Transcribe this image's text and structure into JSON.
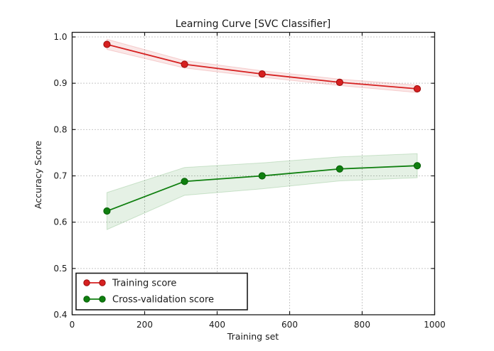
{
  "chart_data": {
    "type": "line",
    "title": "Learning Curve [SVC Classifier]",
    "xlabel": "Training set",
    "ylabel": "Accuracy Score",
    "xlim": [
      0,
      1000
    ],
    "ylim": [
      0.4,
      1.01
    ],
    "xtick_labels": [
      "0",
      "200",
      "400",
      "600",
      "800",
      "1000"
    ],
    "ytick_labels": [
      "0.4",
      "0.5",
      "0.6",
      "0.7",
      "0.8",
      "0.9",
      "1.0"
    ],
    "grid": "dotted gray, on",
    "legend_position": "lower left",
    "x": [
      96,
      310,
      524,
      738,
      952
    ],
    "series": [
      {
        "name": "Training score",
        "color": "#d62020",
        "marker_edge_color": "#9b0b0b",
        "y": [
          0.984,
          0.941,
          0.92,
          0.902,
          0.888
        ],
        "std": [
          0.011,
          0.008,
          0.007,
          0.007,
          0.008
        ]
      },
      {
        "name": "Cross-validation score",
        "color": "#0f7f0f",
        "marker_edge_color": "#075f07",
        "y": [
          0.624,
          0.688,
          0.7,
          0.715,
          0.722
        ],
        "std": [
          0.04,
          0.03,
          0.028,
          0.026,
          0.026
        ]
      }
    ],
    "band_opacity": 0.11,
    "grid_color": "#8f8f8f",
    "frame_color": "#1a1a1a"
  }
}
